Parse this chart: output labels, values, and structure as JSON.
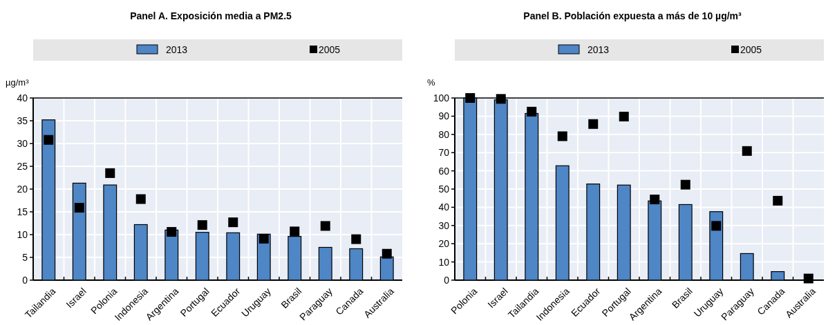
{
  "chart_data": [
    {
      "type": "bar",
      "title": "Panel A. Exposición media a PM2.5",
      "ylabel": "µg/m³",
      "categories": [
        "Tailandia",
        "Israel",
        "Polonia",
        "Indonesia",
        "Argentina",
        "Portugal",
        "Ecuador",
        "Uruguay",
        "Brasil",
        "Paraguay",
        "Canada",
        "Australia"
      ],
      "series": [
        {
          "name": "2013",
          "color": "#4e86c6",
          "values": [
            35.2,
            21.3,
            20.9,
            12.2,
            11.0,
            10.5,
            10.4,
            10.1,
            9.6,
            7.2,
            6.9,
            5.1
          ]
        },
        {
          "name": "2005",
          "type": "scatter",
          "color": "#000000",
          "values": [
            30.8,
            15.9,
            23.5,
            17.8,
            10.6,
            12.1,
            12.7,
            9.1,
            10.7,
            11.9,
            9.0,
            5.8
          ]
        }
      ],
      "ylim": [
        0,
        40
      ],
      "yticks": [
        0,
        5,
        10,
        15,
        20,
        25,
        30,
        35,
        40
      ],
      "grid": true,
      "legend": "top",
      "marker": "square"
    },
    {
      "type": "bar",
      "title": "Panel B. Población expuesta a más de 10 µg/m³",
      "ylabel": "%",
      "categories": [
        "Polonia",
        "Israel",
        "Tailandia",
        "Indonesia",
        "Ecuador",
        "Portugal",
        "Argentina",
        "Brasil",
        "Uruguay",
        "Paraguay",
        "Canada",
        "Australia"
      ],
      "series": [
        {
          "name": "2013",
          "color": "#4e86c6",
          "values": [
            100,
            99,
            91.5,
            62.8,
            52.8,
            52.2,
            43.5,
            41.5,
            37.6,
            14.6,
            4.7,
            0
          ]
        },
        {
          "name": "2005",
          "type": "scatter",
          "color": "#000000",
          "values": [
            100,
            99.5,
            92.5,
            79,
            85.7,
            89.8,
            44.3,
            52.4,
            29.8,
            70.9,
            43.6,
            0.9
          ]
        }
      ],
      "ylim": [
        0,
        100
      ],
      "yticks": [
        0,
        10,
        20,
        30,
        40,
        50,
        60,
        70,
        80,
        90,
        100
      ],
      "grid": true,
      "legend": "top",
      "marker": "square"
    }
  ]
}
